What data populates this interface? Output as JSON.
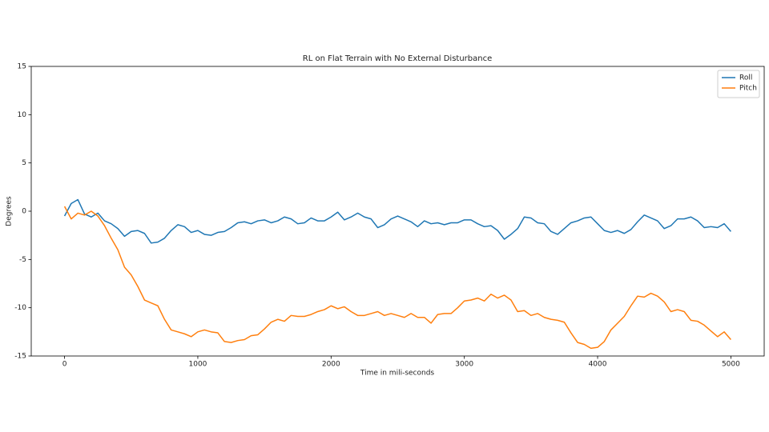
{
  "chart_data": {
    "type": "line",
    "title": "RL on Flat Terrain with No External Disturbance",
    "x_label": "Time in mili-seconds",
    "y_label": "Degrees",
    "x": [
      0,
      50,
      100,
      150,
      200,
      250,
      300,
      350,
      400,
      450,
      500,
      550,
      600,
      650,
      700,
      750,
      800,
      850,
      900,
      950,
      1000,
      1050,
      1100,
      1150,
      1200,
      1250,
      1300,
      1350,
      1400,
      1450,
      1500,
      1550,
      1600,
      1650,
      1700,
      1750,
      1800,
      1850,
      1900,
      1950,
      2000,
      2050,
      2100,
      2150,
      2200,
      2250,
      2300,
      2350,
      2400,
      2450,
      2500,
      2550,
      2600,
      2650,
      2700,
      2750,
      2800,
      2850,
      2900,
      2950,
      3000,
      3050,
      3100,
      3150,
      3200,
      3250,
      3300,
      3350,
      3400,
      3450,
      3500,
      3550,
      3600,
      3650,
      3700,
      3750,
      3800,
      3850,
      3900,
      3950,
      4000,
      4050,
      4100,
      4150,
      4200,
      4250,
      4300,
      4350,
      4400,
      4450,
      4500,
      4550,
      4600,
      4650,
      4700,
      4750,
      4800,
      4850,
      4900,
      4950,
      5000
    ],
    "series": [
      {
        "name": "Roll",
        "color": "#1f77b4",
        "values": [
          -0.5,
          0.8,
          1.2,
          -0.3,
          -0.6,
          -0.2,
          -1.0,
          -1.3,
          -1.8,
          -2.6,
          -2.1,
          -2.0,
          -2.3,
          -3.3,
          -3.2,
          -2.8,
          -2.0,
          -1.4,
          -1.6,
          -2.2,
          -2.0,
          -2.4,
          -2.5,
          -2.2,
          -2.1,
          -1.7,
          -1.2,
          -1.1,
          -1.3,
          -1.0,
          -0.9,
          -1.2,
          -1.0,
          -0.6,
          -0.8,
          -1.3,
          -1.2,
          -0.7,
          -1.0,
          -1.0,
          -0.6,
          -0.1,
          -0.9,
          -0.6,
          -0.2,
          -0.6,
          -0.8,
          -1.7,
          -1.4,
          -0.8,
          -0.5,
          -0.8,
          -1.1,
          -1.6,
          -1.0,
          -1.3,
          -1.2,
          -1.4,
          -1.2,
          -1.2,
          -0.9,
          -0.9,
          -1.3,
          -1.6,
          -1.5,
          -2.0,
          -2.9,
          -2.4,
          -1.8,
          -0.6,
          -0.7,
          -1.2,
          -1.3,
          -2.1,
          -2.4,
          -1.8,
          -1.2,
          -1.0,
          -0.7,
          -0.6,
          -1.3,
          -2.0,
          -2.2,
          -2.0,
          -2.3,
          -1.9,
          -1.1,
          -0.4,
          -0.7,
          -1.0,
          -1.8,
          -1.5,
          -0.8,
          -0.8,
          -0.6,
          -1.0,
          -1.7,
          -1.6,
          -1.7,
          -1.3,
          -2.1
        ]
      },
      {
        "name": "Pitch",
        "color": "#ff7f0e",
        "values": [
          0.5,
          -0.8,
          -0.2,
          -0.4,
          0.0,
          -0.5,
          -1.5,
          -2.8,
          -4.0,
          -5.8,
          -6.6,
          -7.8,
          -9.2,
          -9.5,
          -9.8,
          -11.2,
          -12.3,
          -12.5,
          -12.7,
          -13.0,
          -12.5,
          -12.3,
          -12.5,
          -12.6,
          -13.5,
          -13.6,
          -13.4,
          -13.3,
          -12.9,
          -12.8,
          -12.2,
          -11.5,
          -11.2,
          -11.4,
          -10.8,
          -10.9,
          -10.9,
          -10.7,
          -10.4,
          -10.2,
          -9.8,
          -10.1,
          -9.9,
          -10.4,
          -10.8,
          -10.8,
          -10.6,
          -10.4,
          -10.8,
          -10.6,
          -10.8,
          -11.0,
          -10.6,
          -11.0,
          -11.0,
          -11.6,
          -10.7,
          -10.6,
          -10.6,
          -10.0,
          -9.3,
          -9.2,
          -9.0,
          -9.3,
          -8.6,
          -9.0,
          -8.7,
          -9.2,
          -10.4,
          -10.3,
          -10.8,
          -10.6,
          -11.0,
          -11.2,
          -11.3,
          -11.5,
          -12.6,
          -13.6,
          -13.8,
          -14.2,
          -14.1,
          -13.5,
          -12.3,
          -11.6,
          -10.9,
          -9.8,
          -8.8,
          -8.9,
          -8.5,
          -8.8,
          -9.4,
          -10.4,
          -10.2,
          -10.4,
          -11.3,
          -11.4,
          -11.8,
          -12.4,
          -13.0,
          -12.5,
          -13.3
        ]
      }
    ],
    "xlim": [
      -250,
      5250
    ],
    "ylim": [
      -15,
      15
    ],
    "xticks": [
      0,
      1000,
      2000,
      3000,
      4000,
      5000
    ],
    "yticks": [
      -15,
      -10,
      -5,
      0,
      5,
      10,
      15
    ],
    "grid": false,
    "legend": "upper-right"
  }
}
